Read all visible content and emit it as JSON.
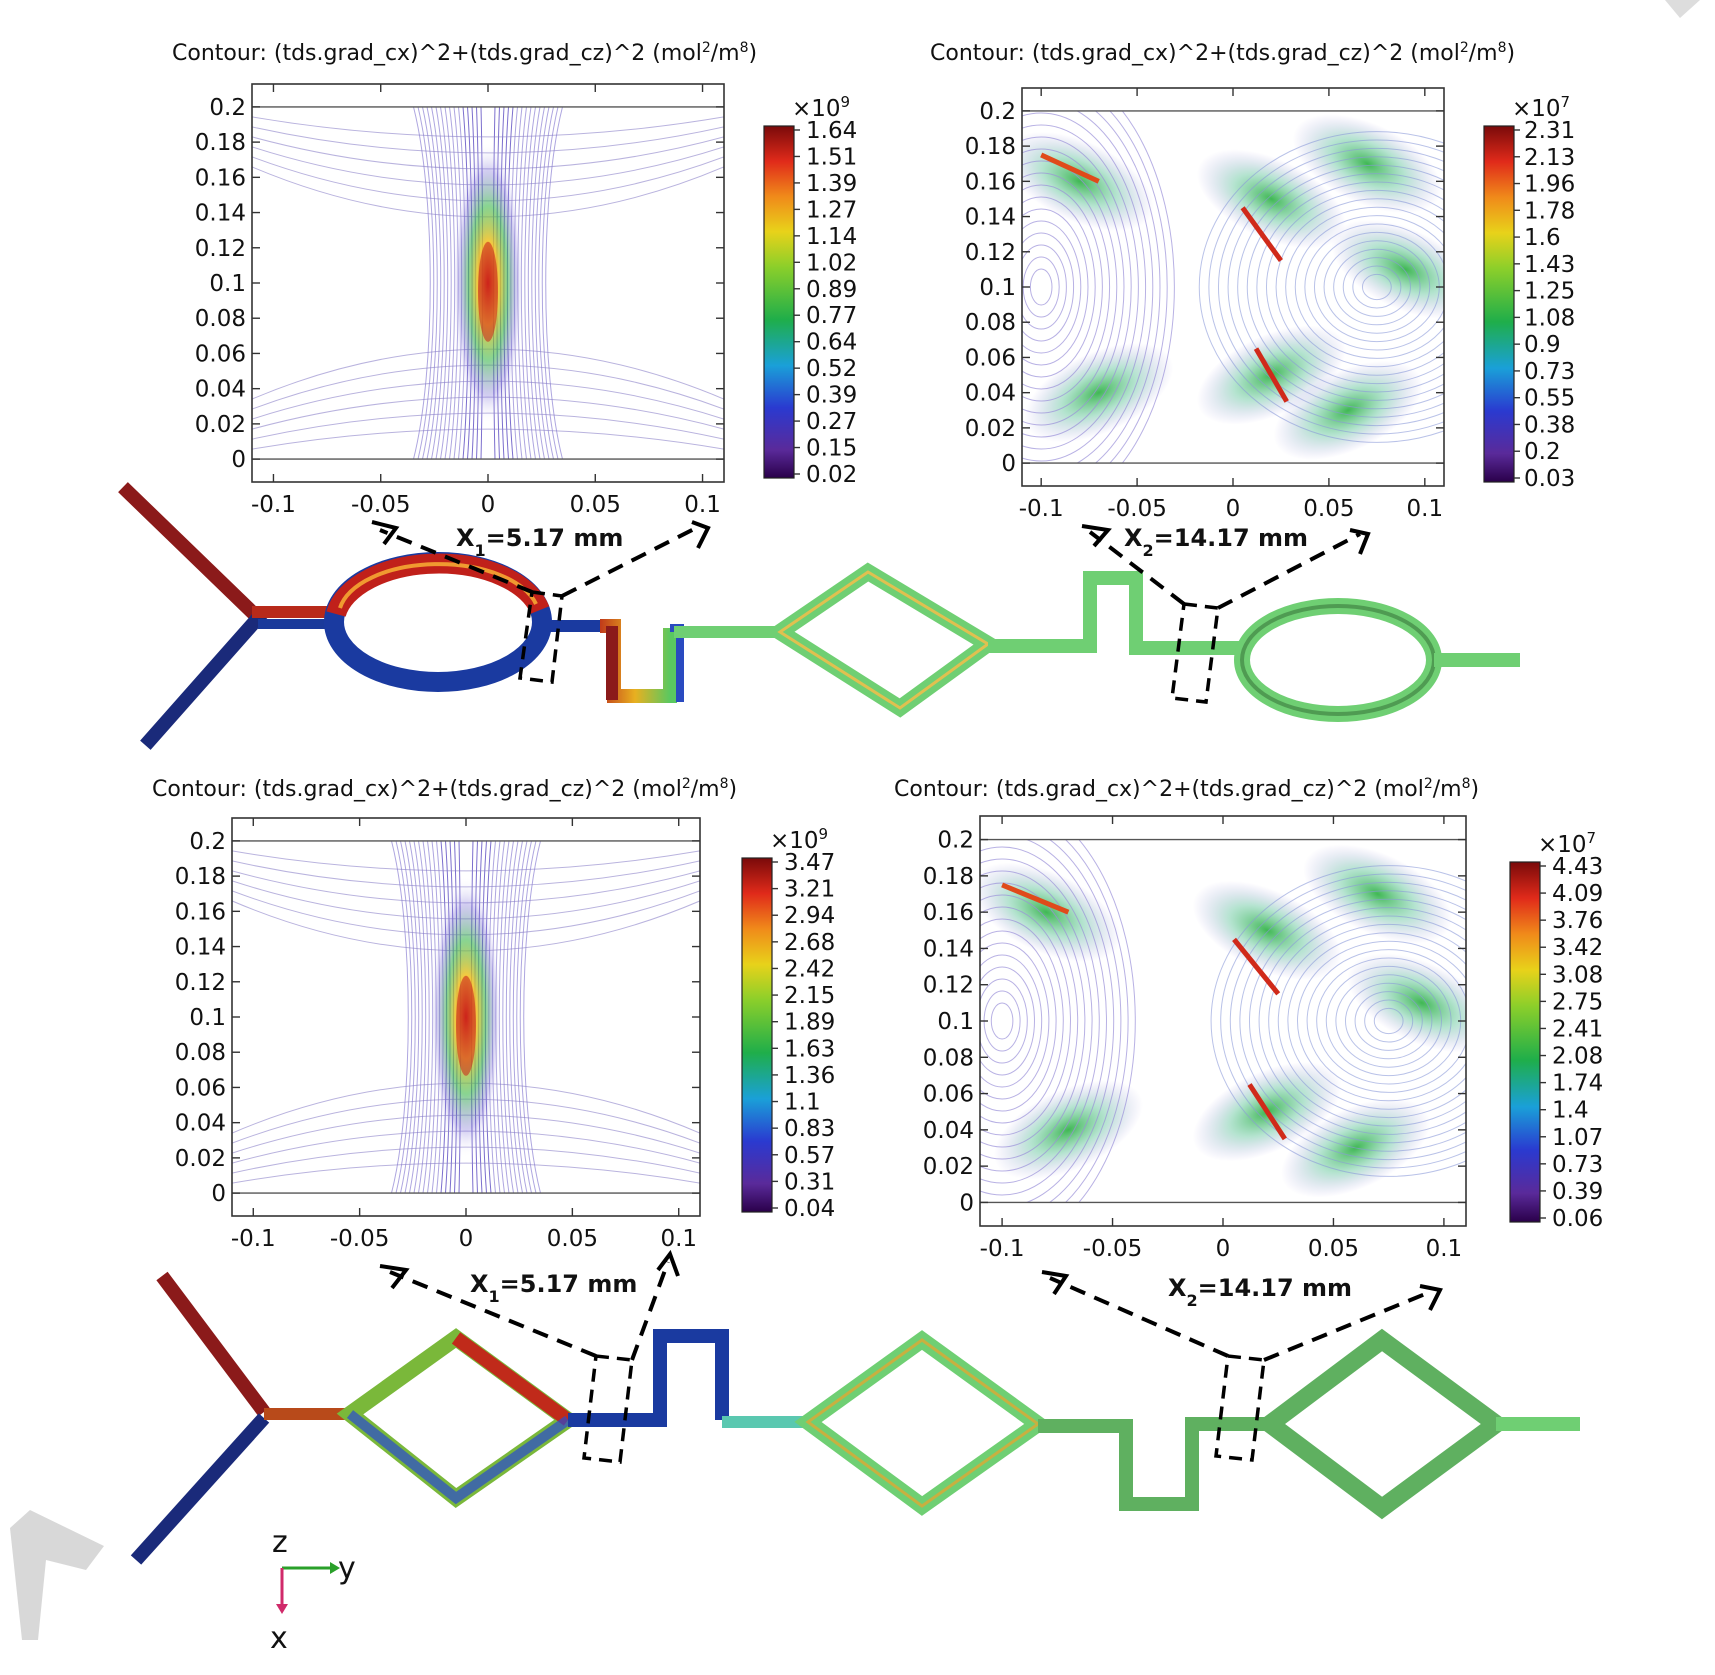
{
  "chart_data": [
    {
      "type": "contour",
      "title_prefix": "Contour: (tds.grad_cx)^2+(tds.grad_cz)^2 (mol",
      "title_sup1": "2",
      "title_mid": "/m",
      "title_sup2": "8",
      "title_suffix": ")",
      "xlim": [
        -0.11,
        0.11
      ],
      "ylim": [
        -0.013,
        0.213
      ],
      "xticks": [
        "-0.1",
        "-0.05",
        "0",
        "0.05",
        "0.1"
      ],
      "yticks": [
        "0.2",
        "0.18",
        "0.16",
        "0.14",
        "0.12",
        "0.1",
        "0.08",
        "0.06",
        "0.04",
        "0.02",
        "0"
      ],
      "colorbar_exponent": "×10",
      "colorbar_exponent_power": "9",
      "colorbar_ticks": [
        "1.64",
        "1.51",
        "1.39",
        "1.27",
        "1.14",
        "1.02",
        "0.89",
        "0.77",
        "0.64",
        "0.52",
        "0.39",
        "0.27",
        "0.15",
        "0.02"
      ],
      "section_label": "X",
      "section_sub": "1",
      "section_value": "=5.17 mm"
    },
    {
      "type": "contour",
      "title_prefix": "Contour: (tds.grad_cx)^2+(tds.grad_cz)^2 (mol",
      "title_sup1": "2",
      "title_mid": "/m",
      "title_sup2": "8",
      "title_suffix": ")",
      "xlim": [
        -0.11,
        0.11
      ],
      "ylim": [
        -0.013,
        0.213
      ],
      "xticks": [
        "-0.1",
        "-0.05",
        "0",
        "0.05",
        "0.1"
      ],
      "yticks": [
        "0.2",
        "0.18",
        "0.16",
        "0.14",
        "0.12",
        "0.1",
        "0.08",
        "0.06",
        "0.04",
        "0.02",
        "0"
      ],
      "colorbar_exponent": "×10",
      "colorbar_exponent_power": "7",
      "colorbar_ticks": [
        "2.31",
        "2.13",
        "1.96",
        "1.78",
        "1.6",
        "1.43",
        "1.25",
        "1.08",
        "0.9",
        "0.73",
        "0.55",
        "0.38",
        "0.2",
        "0.03"
      ],
      "section_label": "X",
      "section_sub": "2",
      "section_value": "=14.17 mm"
    },
    {
      "type": "contour",
      "title_prefix": "Contour: (tds.grad_cx)^2+(tds.grad_cz)^2 (mol",
      "title_sup1": "2",
      "title_mid": "/m",
      "title_sup2": "8",
      "title_suffix": ")",
      "xlim": [
        -0.11,
        0.11
      ],
      "ylim": [
        -0.013,
        0.213
      ],
      "xticks": [
        "-0.1",
        "-0.05",
        "0",
        "0.05",
        "0.1"
      ],
      "yticks": [
        "0.2",
        "0.18",
        "0.16",
        "0.14",
        "0.12",
        "0.1",
        "0.08",
        "0.06",
        "0.04",
        "0.02",
        "0"
      ],
      "colorbar_exponent": "×10",
      "colorbar_exponent_power": "9",
      "colorbar_ticks": [
        "3.47",
        "3.21",
        "2.94",
        "2.68",
        "2.42",
        "2.15",
        "1.89",
        "1.63",
        "1.36",
        "1.1",
        "0.83",
        "0.57",
        "0.31",
        "0.04"
      ],
      "section_label": "X",
      "section_sub": "1",
      "section_value": "=5.17 mm"
    },
    {
      "type": "contour",
      "title_prefix": "Contour: (tds.grad_cx)^2+(tds.grad_cz)^2 (mol",
      "title_sup1": "2",
      "title_mid": "/m",
      "title_sup2": "8",
      "title_suffix": ")",
      "xlim": [
        -0.11,
        0.11
      ],
      "ylim": [
        -0.013,
        0.213
      ],
      "xticks": [
        "-0.1",
        "-0.05",
        "0",
        "0.05",
        "0.1"
      ],
      "yticks": [
        "0.2",
        "0.18",
        "0.16",
        "0.14",
        "0.12",
        "0.1",
        "0.08",
        "0.06",
        "0.04",
        "0.02",
        "0"
      ],
      "colorbar_exponent": "×10",
      "colorbar_exponent_power": "7",
      "colorbar_ticks": [
        "4.43",
        "4.09",
        "3.76",
        "3.42",
        "3.08",
        "2.75",
        "2.41",
        "2.08",
        "1.74",
        "1.4",
        "1.07",
        "0.73",
        "0.39",
        "0.06"
      ],
      "section_label": "X",
      "section_sub": "2",
      "section_value": "=14.17 mm"
    }
  ],
  "axes_triad": {
    "z": "z",
    "y": "y",
    "x": "x"
  },
  "colors": {
    "red_channel": "#8b1a1a",
    "blue_channel": "#1a2a7a",
    "green_channel": "#6fcf73",
    "dark_green_channel": "#4f9b52"
  }
}
